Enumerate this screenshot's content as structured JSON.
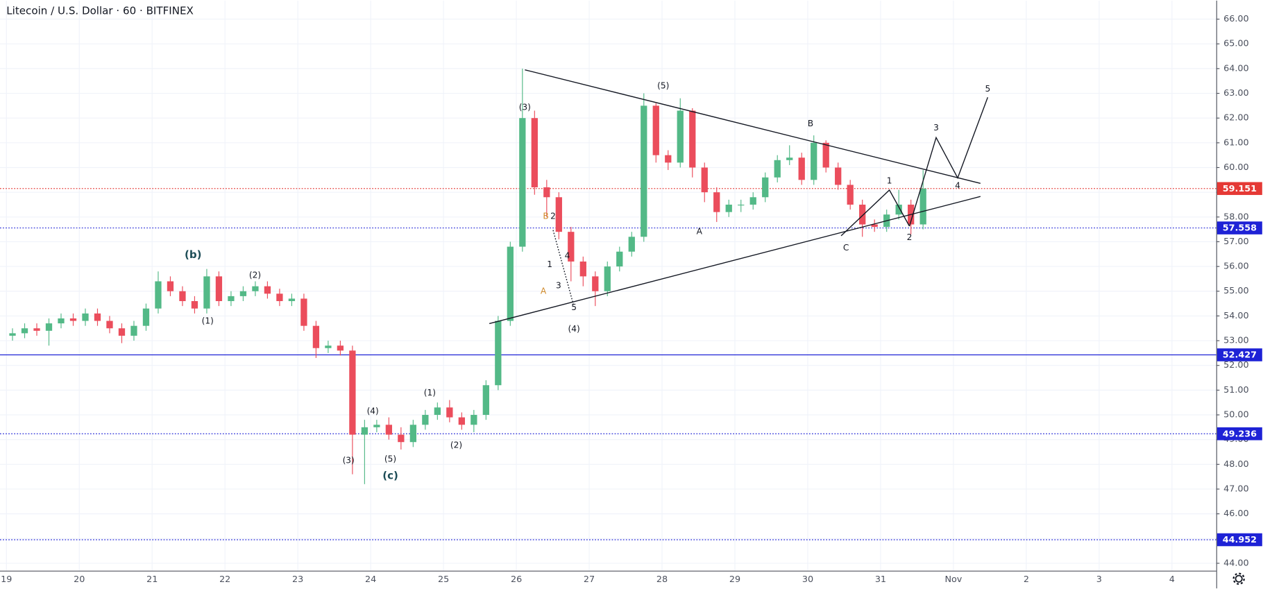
{
  "chart_data": {
    "type": "candlestick",
    "title": "Litecoin / U.S. Dollar · 60 · BITFINEX",
    "up_color": "#53b987",
    "down_color": "#eb4d5c",
    "grid": true,
    "xlim": [
      -2.12,
      398.6
    ],
    "xticks": [
      {
        "value": 0,
        "label": "19"
      },
      {
        "value": 24,
        "label": "20"
      },
      {
        "value": 48,
        "label": "21"
      },
      {
        "value": 72,
        "label": "22"
      },
      {
        "value": 96,
        "label": "23"
      },
      {
        "value": 120,
        "label": "24"
      },
      {
        "value": 144,
        "label": "25"
      },
      {
        "value": 168,
        "label": "26"
      },
      {
        "value": 192,
        "label": "27"
      },
      {
        "value": 216,
        "label": "28"
      },
      {
        "value": 240,
        "label": "29"
      },
      {
        "value": 264,
        "label": "30"
      },
      {
        "value": 288,
        "label": "31"
      },
      {
        "value": 312,
        "label": "Nov"
      },
      {
        "value": 336,
        "label": "2"
      },
      {
        "value": 360,
        "label": "3"
      },
      {
        "value": 384,
        "label": "4"
      }
    ],
    "ylim": [
      43.7,
      66.75
    ],
    "yticks": [
      {
        "value": 44,
        "label": "44.00"
      },
      {
        "value": 45,
        "label": "45.00"
      },
      {
        "value": 46,
        "label": "46.00"
      },
      {
        "value": 47,
        "label": "47.00"
      },
      {
        "value": 48,
        "label": "48.00"
      },
      {
        "value": 49,
        "label": "49.00"
      },
      {
        "value": 50,
        "label": "50.00"
      },
      {
        "value": 51,
        "label": "51.00"
      },
      {
        "value": 52,
        "label": "52.00"
      },
      {
        "value": 53,
        "label": "53.00"
      },
      {
        "value": 54,
        "label": "54.00"
      },
      {
        "value": 55,
        "label": "55.00"
      },
      {
        "value": 56,
        "label": "56.00"
      },
      {
        "value": 57,
        "label": "57.00"
      },
      {
        "value": 58,
        "label": "58.00"
      },
      {
        "value": 59,
        "label": "59.00"
      },
      {
        "value": 60,
        "label": "60.00"
      },
      {
        "value": 61,
        "label": "61.00"
      },
      {
        "value": 62,
        "label": "62.00"
      },
      {
        "value": 63,
        "label": "63.00"
      },
      {
        "value": 64,
        "label": "64.00"
      },
      {
        "value": 65,
        "label": "65.00"
      },
      {
        "value": 66,
        "label": "66.00"
      }
    ],
    "x": [
      2,
      6,
      10,
      14,
      18,
      22,
      26,
      30,
      34,
      38,
      42,
      46,
      50,
      54,
      58,
      62,
      66,
      70,
      74,
      78,
      82,
      86,
      90,
      94,
      98,
      102,
      106,
      110,
      114,
      118,
      122,
      126,
      130,
      134,
      138,
      142,
      146,
      150,
      154,
      158,
      162,
      166,
      170,
      174,
      178,
      182,
      186,
      190,
      194,
      198,
      202,
      206,
      210,
      214,
      218,
      222,
      226,
      230,
      234,
      238,
      242,
      246,
      250,
      254,
      258,
      262,
      266,
      270,
      274,
      278,
      282,
      286,
      290,
      294,
      298,
      302
    ],
    "open": [
      53.2,
      53.3,
      53.5,
      53.4,
      53.7,
      53.9,
      53.8,
      54.1,
      53.8,
      53.5,
      53.2,
      53.6,
      54.3,
      55.4,
      55.0,
      54.6,
      54.3,
      55.6,
      54.6,
      54.8,
      55.0,
      55.2,
      54.9,
      54.6,
      54.7,
      53.6,
      52.7,
      52.8,
      52.6,
      49.2,
      49.5,
      49.6,
      49.2,
      48.9,
      49.6,
      50.0,
      50.3,
      49.9,
      49.6,
      50.0,
      51.2,
      53.8,
      56.8,
      62.0,
      59.2,
      58.8,
      57.4,
      56.2,
      55.6,
      55.0,
      56.0,
      56.6,
      57.2,
      62.5,
      60.5,
      60.2,
      62.3,
      60.0,
      59.0,
      58.2,
      58.5,
      58.5,
      58.8,
      59.6,
      60.3,
      60.4,
      59.5,
      61.0,
      60.0,
      59.3,
      58.5,
      57.7,
      57.6,
      58.1,
      58.5,
      57.7
    ],
    "high": [
      53.5,
      53.7,
      53.7,
      53.9,
      54.1,
      54.1,
      54.3,
      54.3,
      54.0,
      53.7,
      53.8,
      54.5,
      55.8,
      55.6,
      55.2,
      54.8,
      55.9,
      55.8,
      55.0,
      55.2,
      55.4,
      55.4,
      55.1,
      54.9,
      54.9,
      53.8,
      53.0,
      53.0,
      52.8,
      49.8,
      49.8,
      49.9,
      49.5,
      49.8,
      50.2,
      50.5,
      50.6,
      50.1,
      50.2,
      51.4,
      54.0,
      57.0,
      64.0,
      62.3,
      59.5,
      59.0,
      57.6,
      56.4,
      55.8,
      56.2,
      56.8,
      57.4,
      63.0,
      62.6,
      60.7,
      62.8,
      62.4,
      60.2,
      59.2,
      58.7,
      58.7,
      59.0,
      59.8,
      60.5,
      60.9,
      60.6,
      61.3,
      61.1,
      60.2,
      59.5,
      58.7,
      57.9,
      58.3,
      59.1,
      58.7,
      59.9
    ],
    "low": [
      53.0,
      53.1,
      53.2,
      52.8,
      53.5,
      53.6,
      53.6,
      53.6,
      53.3,
      52.9,
      53.0,
      53.4,
      54.1,
      54.8,
      54.4,
      54.1,
      54.1,
      54.4,
      54.4,
      54.6,
      54.8,
      54.7,
      54.4,
      54.4,
      53.4,
      52.3,
      52.5,
      52.4,
      47.6,
      47.2,
      49.3,
      49.0,
      48.6,
      48.7,
      49.4,
      49.8,
      49.7,
      49.4,
      49.3,
      49.8,
      51.0,
      53.6,
      56.6,
      58.9,
      58.0,
      57.1,
      55.4,
      55.2,
      54.4,
      54.8,
      55.8,
      56.4,
      57.0,
      60.2,
      59.9,
      60.0,
      59.6,
      58.6,
      57.8,
      58.0,
      58.2,
      58.3,
      58.6,
      59.4,
      60.1,
      59.3,
      59.3,
      59.8,
      59.1,
      58.3,
      57.2,
      57.4,
      57.4,
      57.9,
      57.3,
      57.5
    ],
    "close": [
      53.3,
      53.5,
      53.4,
      53.7,
      53.9,
      53.8,
      54.1,
      53.8,
      53.5,
      53.2,
      53.6,
      54.3,
      55.4,
      55.0,
      54.6,
      54.3,
      55.6,
      54.6,
      54.8,
      55.0,
      55.2,
      54.9,
      54.6,
      54.7,
      53.6,
      52.7,
      52.8,
      52.6,
      49.2,
      49.5,
      49.6,
      49.2,
      48.9,
      49.6,
      50.0,
      50.3,
      49.9,
      49.6,
      50.0,
      51.2,
      53.8,
      56.8,
      62.0,
      59.2,
      58.8,
      57.4,
      56.2,
      55.6,
      55.0,
      56.0,
      56.6,
      57.2,
      62.5,
      60.5,
      60.2,
      62.3,
      60.0,
      59.0,
      58.2,
      58.5,
      58.5,
      58.8,
      59.6,
      60.3,
      60.4,
      59.5,
      61.0,
      60.0,
      59.3,
      58.5,
      57.7,
      57.6,
      58.1,
      58.5,
      57.7,
      59.15
    ],
    "levels": [
      {
        "value": 59.151,
        "color": "#e53935",
        "style": "dotted"
      },
      {
        "value": 57.558,
        "color": "#1e22d6",
        "style": "dotted"
      },
      {
        "value": 52.427,
        "color": "#1e22d6",
        "style": "solid"
      },
      {
        "value": 49.236,
        "color": "#1e22d6",
        "style": "dotted"
      },
      {
        "value": 44.952,
        "color": "#1e22d6",
        "style": "dotted"
      }
    ],
    "trendlines": [
      {
        "points": [
          [
            170.8,
            63.95
          ],
          [
            320.9,
            59.36
          ]
        ],
        "style": "solid"
      },
      {
        "points": [
          [
            159.1,
            53.69
          ],
          [
            320.9,
            58.83
          ]
        ],
        "style": "solid"
      },
      {
        "points": [
          [
            297.5,
            57.63
          ],
          [
            306.3,
            61.21
          ],
          [
            313.4,
            59.58
          ],
          [
            323.3,
            62.84
          ]
        ],
        "style": "solid"
      },
      {
        "points": [
          [
            275.0,
            57.24
          ],
          [
            290.9,
            59.09
          ],
          [
            297.5,
            57.63
          ]
        ],
        "style": "solid"
      },
      {
        "points": [
          [
            180.1,
            57.47
          ],
          [
            187.0,
            54.37
          ]
        ],
        "style": "dotted"
      }
    ],
    "annotations": [
      {
        "text": "(b)",
        "x": 61.5,
        "y": 56.46,
        "color": "#1d4d57",
        "bold": true
      },
      {
        "text": "(1)",
        "x": 66.3,
        "y": 53.78
      },
      {
        "text": "(2)",
        "x": 81.9,
        "y": 55.64
      },
      {
        "text": "(3)",
        "x": 112.7,
        "y": 48.15
      },
      {
        "text": "(4)",
        "x": 120.7,
        "y": 50.14
      },
      {
        "text": "(5)",
        "x": 126.5,
        "y": 48.21
      },
      {
        "text": "(c)",
        "x": 126.5,
        "y": 47.53,
        "color": "#1d4d57",
        "bold": true
      },
      {
        "text": "(1)",
        "x": 139.5,
        "y": 50.89
      },
      {
        "text": "(2)",
        "x": 148.2,
        "y": 48.77
      },
      {
        "text": "(3)",
        "x": 170.8,
        "y": 62.42
      },
      {
        "text": "B",
        "x": 177.7,
        "y": 58.02,
        "color": "#d08a2a"
      },
      {
        "text": "2",
        "x": 180.1,
        "y": 58.02
      },
      {
        "text": "1",
        "x": 179.0,
        "y": 56.07
      },
      {
        "text": "4",
        "x": 184.8,
        "y": 56.42
      },
      {
        "text": "3",
        "x": 181.9,
        "y": 55.22
      },
      {
        "text": "A",
        "x": 176.9,
        "y": 54.99,
        "color": "#d08a2a"
      },
      {
        "text": "5",
        "x": 187.0,
        "y": 54.34
      },
      {
        "text": "(4)",
        "x": 187.0,
        "y": 53.46
      },
      {
        "text": "(5)",
        "x": 216.4,
        "y": 63.3
      },
      {
        "text": "A",
        "x": 228.3,
        "y": 57.4
      },
      {
        "text": "B",
        "x": 264.9,
        "y": 61.77
      },
      {
        "text": "C",
        "x": 276.6,
        "y": 56.75
      },
      {
        "text": "1",
        "x": 290.9,
        "y": 59.45
      },
      {
        "text": "2",
        "x": 297.5,
        "y": 57.17
      },
      {
        "text": "3",
        "x": 306.3,
        "y": 61.6
      },
      {
        "text": "4",
        "x": 313.4,
        "y": 59.26
      },
      {
        "text": "5",
        "x": 323.3,
        "y": 63.17
      }
    ]
  }
}
